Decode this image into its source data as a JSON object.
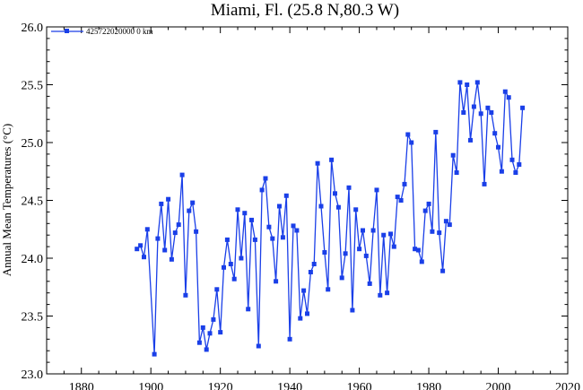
{
  "chart_data": {
    "type": "line",
    "title": "Miami, Fl. (25.8 N,80.3 W)",
    "xlabel": "",
    "ylabel": "Annual Mean Temperatures (°C)",
    "xlim": [
      1870,
      2020
    ],
    "ylim": [
      23.0,
      26.0
    ],
    "x_ticks": [
      "1880",
      "1900",
      "1920",
      "1940",
      "1960",
      "1980",
      "2000",
      "2020"
    ],
    "y_ticks": [
      "23.0",
      "23.5",
      "24.0",
      "24.5",
      "25.0",
      "25.5",
      "26.0"
    ],
    "grid": false,
    "legend_position": "top-left",
    "series_color": "#1a3fe8",
    "series": [
      {
        "name": "425722020000 0 km",
        "x": [
          1896,
          1897,
          1898,
          1899,
          1901,
          1902,
          1903,
          1904,
          1905,
          1906,
          1907,
          1908,
          1909,
          1910,
          1911,
          1912,
          1913,
          1914,
          1915,
          1916,
          1917,
          1918,
          1919,
          1920,
          1921,
          1922,
          1923,
          1924,
          1925,
          1926,
          1927,
          1928,
          1929,
          1930,
          1931,
          1932,
          1933,
          1934,
          1935,
          1936,
          1937,
          1938,
          1939,
          1940,
          1941,
          1942,
          1943,
          1944,
          1945,
          1946,
          1947,
          1948,
          1949,
          1950,
          1951,
          1952,
          1953,
          1954,
          1955,
          1956,
          1957,
          1958,
          1959,
          1960,
          1961,
          1962,
          1963,
          1964,
          1965,
          1966,
          1967,
          1968,
          1969,
          1970,
          1971,
          1972,
          1973,
          1974,
          1975,
          1976,
          1977,
          1978,
          1979,
          1980,
          1981,
          1982,
          1983,
          1984,
          1985,
          1986,
          1987,
          1988,
          1989,
          1990,
          1991,
          1992,
          1993,
          1994,
          1995,
          1996,
          1997,
          1998,
          1999,
          2000,
          2001,
          2002,
          2003,
          2004,
          2005,
          2006,
          2007
        ],
        "values": [
          24.08,
          24.11,
          24.01,
          24.25,
          23.17,
          24.17,
          24.47,
          24.07,
          24.51,
          23.99,
          24.22,
          24.29,
          24.72,
          23.68,
          24.41,
          24.48,
          24.23,
          23.27,
          23.4,
          23.21,
          23.35,
          23.47,
          23.73,
          23.36,
          23.92,
          24.16,
          23.95,
          23.82,
          24.42,
          24.0,
          24.39,
          23.56,
          24.33,
          24.16,
          23.24,
          24.59,
          24.69,
          24.27,
          24.17,
          23.8,
          24.45,
          24.18,
          24.54,
          23.3,
          24.28,
          24.24,
          23.48,
          23.72,
          23.52,
          23.88,
          23.95,
          24.82,
          24.45,
          24.05,
          23.73,
          24.85,
          24.56,
          24.44,
          23.83,
          24.04,
          24.61,
          23.55,
          24.42,
          24.08,
          24.24,
          24.02,
          23.78,
          24.24,
          24.59,
          23.68,
          24.2,
          23.7,
          24.21,
          24.1,
          24.53,
          24.5,
          24.64,
          25.07,
          25.0,
          24.08,
          24.07,
          23.97,
          24.41,
          24.47,
          24.23,
          25.09,
          24.22,
          23.89,
          24.32,
          24.29,
          24.89,
          24.74,
          25.52,
          25.26,
          25.5,
          25.02,
          25.31,
          25.52,
          25.25,
          24.64,
          25.3,
          25.26,
          25.08,
          24.96,
          24.75,
          25.44,
          25.39,
          24.85,
          24.74,
          24.81,
          25.3
        ]
      }
    ]
  }
}
